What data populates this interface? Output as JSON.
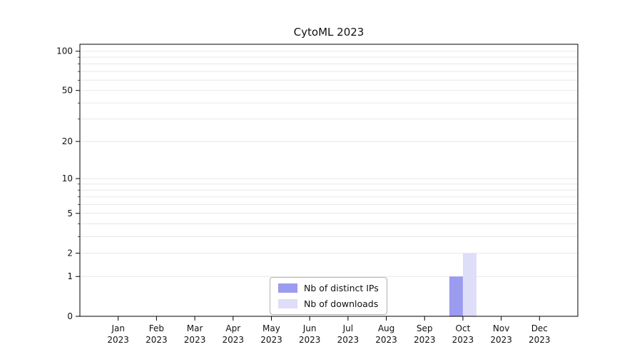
{
  "page": {
    "background": "#ffffff"
  },
  "chart_data": {
    "type": "bar",
    "title": "CytoML 2023",
    "x_categories": [
      "Jan",
      "Feb",
      "Mar",
      "Apr",
      "May",
      "Jun",
      "Jul",
      "Aug",
      "Sep",
      "Oct",
      "Nov",
      "Dec"
    ],
    "x_year_label": "2023",
    "series": [
      {
        "name": "Nb of distinct IPs",
        "color": "#9b9bef",
        "values": [
          0,
          0,
          0,
          0,
          0,
          0,
          0,
          0,
          0,
          1,
          0,
          0
        ]
      },
      {
        "name": "Nb of downloads",
        "color": "#dedef9",
        "values": [
          0,
          0,
          0,
          0,
          0,
          0,
          0,
          0,
          0,
          2,
          0,
          0
        ]
      }
    ],
    "y_ticks": [
      0,
      1,
      2,
      5,
      10,
      20,
      50,
      100
    ],
    "y_scale": "log1p",
    "y_axis_max": 113,
    "ylim": [
      0,
      113
    ],
    "gridlines": [
      1,
      2,
      3,
      4,
      5,
      6,
      7,
      8,
      9,
      10,
      20,
      30,
      40,
      50,
      60,
      70,
      80,
      90,
      100
    ],
    "grid_color": "#e8e8e8",
    "axis_color": "#000000",
    "legend_position": "bottom-center-inside"
  }
}
